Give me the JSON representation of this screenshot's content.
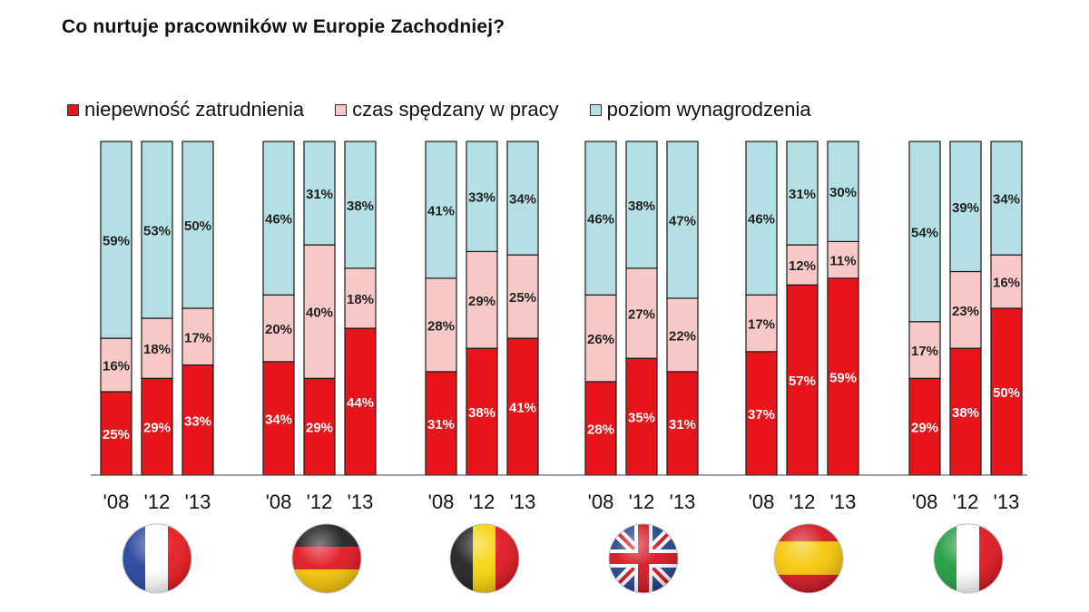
{
  "chart_data": {
    "type": "bar",
    "stacked": true,
    "title": "Co nurtuje pracowników w Europie Zachodniej?",
    "legend_position": "top",
    "group_icons": [
      "france-flag-icon",
      "germany-flag-icon",
      "belgium-flag-icon",
      "uk-flag-icon",
      "spain-flag-icon",
      "italy-flag-icon"
    ],
    "categories": [
      "'08",
      "'12",
      "'13"
    ],
    "series": [
      {
        "name": "niepewność zatrudnienia",
        "color": "#e8141b"
      },
      {
        "name": "czas spędzany w pracy",
        "color": "#f9c8c8"
      },
      {
        "name": "poziom wynagrodzenia",
        "color": "#b4dfe3"
      }
    ],
    "groups": [
      {
        "values": [
          [
            25,
            16,
            59
          ],
          [
            29,
            18,
            53
          ],
          [
            33,
            17,
            50
          ]
        ],
        "labels": [
          [
            "25%",
            "16%",
            "59%"
          ],
          [
            "29%",
            "18%",
            "53%"
          ],
          [
            "33%",
            "17%",
            "50%"
          ]
        ]
      },
      {
        "values": [
          [
            34,
            20,
            46
          ],
          [
            29,
            40,
            31
          ],
          [
            44,
            18,
            38
          ]
        ],
        "labels": [
          [
            "34%",
            "20%",
            "46%"
          ],
          [
            "29%",
            "40%",
            "31%"
          ],
          [
            "44%",
            "18%",
            "38%"
          ]
        ]
      },
      {
        "values": [
          [
            31,
            28,
            41
          ],
          [
            38,
            29,
            33
          ],
          [
            41,
            25,
            34
          ]
        ],
        "labels": [
          [
            "31%",
            "28%",
            "41%"
          ],
          [
            "38%",
            "29%",
            "33%"
          ],
          [
            "41%",
            "25%",
            "34%"
          ]
        ]
      },
      {
        "values": [
          [
            28,
            26,
            46
          ],
          [
            35,
            27,
            38
          ],
          [
            31,
            22,
            47
          ]
        ],
        "labels": [
          [
            "28%",
            "26%",
            "46%"
          ],
          [
            "35%",
            "27%",
            "38%"
          ],
          [
            "31%",
            "22%",
            "47%"
          ]
        ]
      },
      {
        "values": [
          [
            37,
            17,
            46
          ],
          [
            57,
            12,
            31
          ],
          [
            59,
            11,
            30
          ]
        ],
        "labels": [
          [
            "37%",
            "17%",
            "46%"
          ],
          [
            "57%",
            "12%",
            "31%"
          ],
          [
            "59%",
            "11%",
            "30%"
          ]
        ]
      },
      {
        "values": [
          [
            29,
            17,
            54
          ],
          [
            38,
            23,
            39
          ],
          [
            50,
            16,
            34
          ]
        ],
        "labels": [
          [
            "29%",
            "17%",
            "54%"
          ],
          [
            "38%",
            "23%",
            "39%"
          ],
          [
            "50%",
            "16%",
            "34%"
          ]
        ]
      }
    ]
  }
}
